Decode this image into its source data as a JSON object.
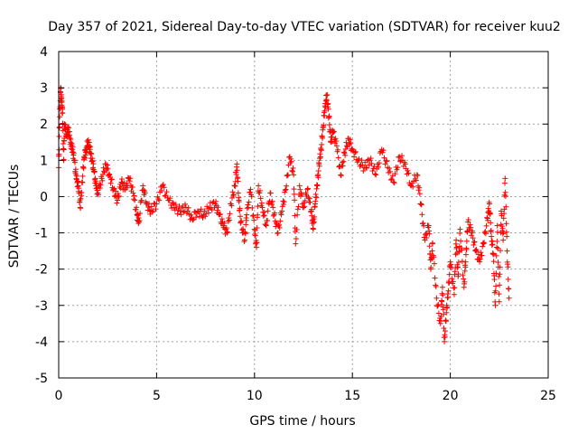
{
  "chart_data": {
    "type": "scatter",
    "title": "Day 357 of 2021, Sidereal Day-to-day VTEC variation (SDTVAR) for receiver kuu2",
    "xlabel": "GPS time / hours",
    "ylabel": "SDTVAR / TECUs",
    "xlim": [
      0,
      25
    ],
    "ylim": [
      -5,
      4
    ],
    "xticks": [
      0,
      5,
      10,
      15,
      20,
      25
    ],
    "yticks": [
      -5,
      -4,
      -3,
      -2,
      -1,
      0,
      1,
      2,
      3,
      4
    ],
    "grid": true,
    "marker": "+",
    "series_color": "#ff0000",
    "series": [
      {
        "name": "SDTVAR",
        "points": [
          [
            0.0,
            0.8
          ],
          [
            0.05,
            2.2
          ],
          [
            0.1,
            3.0
          ],
          [
            0.15,
            2.6
          ],
          [
            0.2,
            2.3
          ],
          [
            0.25,
            1.0
          ],
          [
            0.3,
            2.0
          ],
          [
            0.4,
            1.7
          ],
          [
            0.5,
            1.9
          ],
          [
            0.6,
            1.5
          ],
          [
            0.7,
            1.3
          ],
          [
            0.8,
            1.0
          ],
          [
            0.9,
            0.5
          ],
          [
            1.0,
            0.3
          ],
          [
            1.1,
            -0.3
          ],
          [
            1.2,
            0.4
          ],
          [
            1.3,
            1.1
          ],
          [
            1.4,
            1.3
          ],
          [
            1.5,
            1.5
          ],
          [
            1.6,
            1.3
          ],
          [
            1.7,
            1.0
          ],
          [
            1.8,
            0.7
          ],
          [
            1.9,
            0.3
          ],
          [
            2.0,
            0.1
          ],
          [
            2.2,
            0.5
          ],
          [
            2.4,
            0.9
          ],
          [
            2.6,
            0.6
          ],
          [
            2.8,
            0.2
          ],
          [
            3.0,
            -0.1
          ],
          [
            3.2,
            0.4
          ],
          [
            3.4,
            0.2
          ],
          [
            3.6,
            0.5
          ],
          [
            3.8,
            0.1
          ],
          [
            4.0,
            -0.5
          ],
          [
            4.1,
            -0.7
          ],
          [
            4.3,
            0.3
          ],
          [
            4.5,
            -0.2
          ],
          [
            4.7,
            -0.4
          ],
          [
            5.0,
            -0.2
          ],
          [
            5.3,
            0.3
          ],
          [
            5.6,
            -0.1
          ],
          [
            5.9,
            -0.3
          ],
          [
            6.2,
            -0.4
          ],
          [
            6.5,
            -0.3
          ],
          [
            6.8,
            -0.6
          ],
          [
            7.1,
            -0.4
          ],
          [
            7.4,
            -0.5
          ],
          [
            7.7,
            -0.3
          ],
          [
            8.0,
            -0.2
          ],
          [
            8.2,
            -0.5
          ],
          [
            8.4,
            -0.8
          ],
          [
            8.6,
            -1.0
          ],
          [
            8.8,
            -0.2
          ],
          [
            9.0,
            0.3
          ],
          [
            9.1,
            0.9
          ],
          [
            9.2,
            -0.1
          ],
          [
            9.3,
            -0.7
          ],
          [
            9.5,
            -1.2
          ],
          [
            9.6,
            -0.5
          ],
          [
            9.8,
            0.2
          ],
          [
            10.0,
            -0.9
          ],
          [
            10.1,
            -1.4
          ],
          [
            10.2,
            0.3
          ],
          [
            10.4,
            -0.3
          ],
          [
            10.6,
            -0.8
          ],
          [
            10.8,
            0.1
          ],
          [
            11.0,
            -0.5
          ],
          [
            11.2,
            -1.0
          ],
          [
            11.4,
            -0.4
          ],
          [
            11.6,
            0.2
          ],
          [
            11.8,
            1.1
          ],
          [
            12.0,
            0.6
          ],
          [
            12.1,
            -1.3
          ],
          [
            12.3,
            0.3
          ],
          [
            12.5,
            -0.3
          ],
          [
            12.7,
            0.2
          ],
          [
            12.9,
            -0.4
          ],
          [
            13.0,
            -0.9
          ],
          [
            13.1,
            -0.2
          ],
          [
            13.2,
            0.3
          ],
          [
            13.3,
            0.9
          ],
          [
            13.4,
            1.3
          ],
          [
            13.5,
            1.9
          ],
          [
            13.6,
            2.5
          ],
          [
            13.7,
            2.8
          ],
          [
            13.8,
            2.2
          ],
          [
            13.9,
            1.5
          ],
          [
            14.0,
            1.8
          ],
          [
            14.2,
            1.4
          ],
          [
            14.4,
            0.6
          ],
          [
            14.6,
            1.2
          ],
          [
            14.8,
            1.6
          ],
          [
            15.0,
            1.3
          ],
          [
            15.3,
            1.0
          ],
          [
            15.6,
            0.8
          ],
          [
            15.9,
            1.0
          ],
          [
            16.2,
            0.6
          ],
          [
            16.5,
            1.3
          ],
          [
            16.8,
            0.8
          ],
          [
            17.1,
            0.4
          ],
          [
            17.4,
            1.1
          ],
          [
            17.7,
            0.9
          ],
          [
            18.0,
            0.3
          ],
          [
            18.3,
            0.6
          ],
          [
            18.5,
            -0.2
          ],
          [
            18.7,
            -1.2
          ],
          [
            18.9,
            -0.8
          ],
          [
            19.0,
            -2.0
          ],
          [
            19.1,
            -1.3
          ],
          [
            19.3,
            -2.8
          ],
          [
            19.5,
            -3.5
          ],
          [
            19.6,
            -2.5
          ],
          [
            19.7,
            -4.0
          ],
          [
            19.8,
            -3.2
          ],
          [
            19.9,
            -2.6
          ],
          [
            20.0,
            -1.8
          ],
          [
            20.2,
            -2.7
          ],
          [
            20.3,
            -1.2
          ],
          [
            20.4,
            -2.2
          ],
          [
            20.5,
            -0.9
          ],
          [
            20.7,
            -2.5
          ],
          [
            20.8,
            -1.6
          ],
          [
            20.9,
            -0.7
          ],
          [
            21.1,
            -1.0
          ],
          [
            21.3,
            -1.5
          ],
          [
            21.5,
            -1.8
          ],
          [
            21.7,
            -1.3
          ],
          [
            21.9,
            -0.6
          ],
          [
            22.0,
            -0.2
          ],
          [
            22.1,
            -1.1
          ],
          [
            22.2,
            -1.6
          ],
          [
            22.3,
            -3.0
          ],
          [
            22.4,
            -0.8
          ],
          [
            22.5,
            -2.9
          ],
          [
            22.6,
            -0.4
          ],
          [
            22.7,
            -1.2
          ],
          [
            22.8,
            0.5
          ],
          [
            22.9,
            -1.5
          ],
          [
            23.0,
            -2.8
          ]
        ]
      }
    ]
  }
}
